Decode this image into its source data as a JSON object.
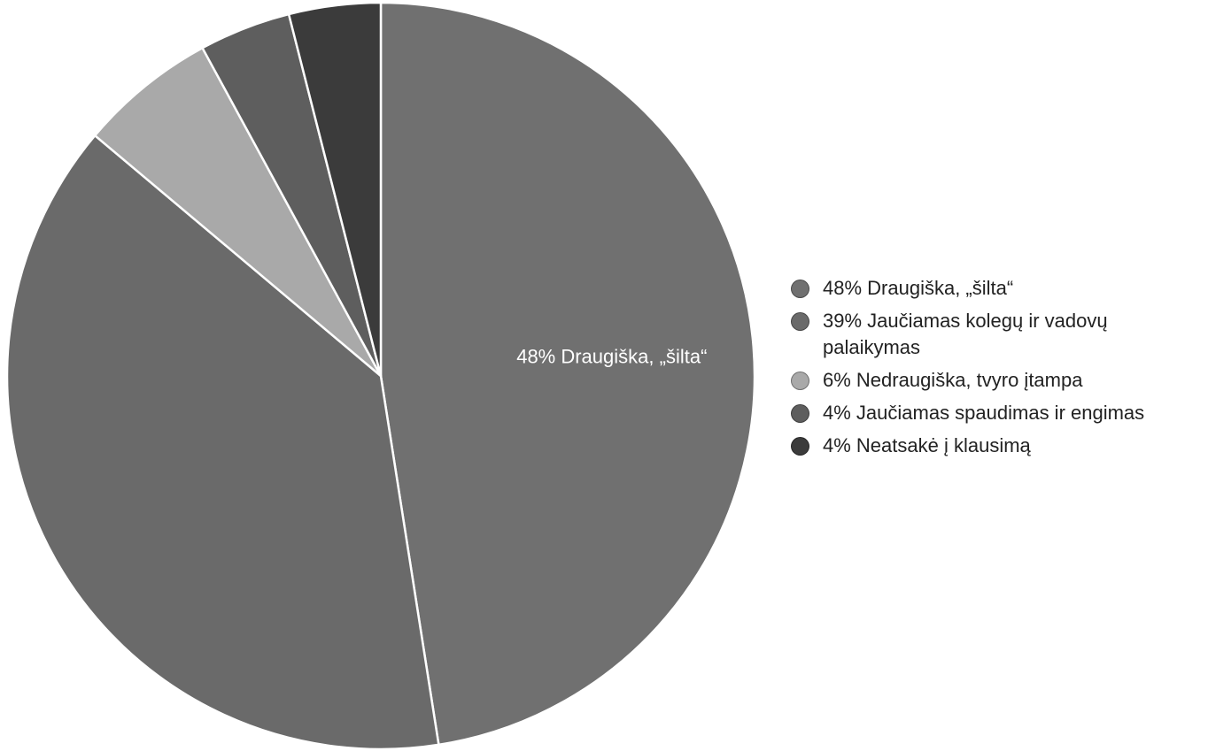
{
  "chart_data": {
    "type": "pie",
    "title": "",
    "start_angle_deg": 0,
    "direction": "clockwise",
    "slices": [
      {
        "label": "48% Draugiška, „šilta“",
        "value": 48,
        "color": "#707070"
      },
      {
        "label": "39% Jaučiamas kolegų ir vadovų palaikymas",
        "value": 39,
        "color": "#6a6a6a"
      },
      {
        "label": "6% Nedraugiška, tvyro įtampa",
        "value": 6,
        "color": "#a9a9a9"
      },
      {
        "label": "4% Jaučiamas spaudimas ir engimas",
        "value": 4,
        "color": "#5e5e5e"
      },
      {
        "label": "4% Neatsakė į klausimą",
        "value": 4,
        "color": "#3b3b3b"
      }
    ],
    "data_labels": [
      {
        "slice": 0,
        "text": "48% Draugiška, „šilta“"
      }
    ],
    "legend_position": "right",
    "grid": false
  }
}
